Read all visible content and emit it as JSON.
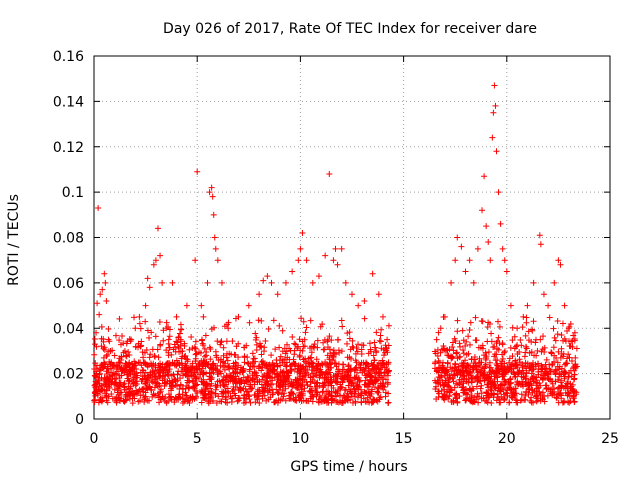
{
  "chart_data": {
    "type": "scatter",
    "title": "Day 026 of 2017, Rate Of TEC Index for receiver dare",
    "xlabel": "GPS time / hours",
    "ylabel": "ROTI / TECUs",
    "xlim": [
      0,
      25
    ],
    "ylim": [
      0,
      0.16
    ],
    "xticks": [
      0,
      5,
      10,
      15,
      20,
      25
    ],
    "yticks": [
      0,
      0.02,
      0.04,
      0.06,
      0.08,
      0.1,
      0.12,
      0.14,
      0.16
    ],
    "xtick_labels": [
      "0",
      "5",
      "10",
      "15",
      "20",
      "25"
    ],
    "ytick_labels": [
      "0",
      "0.02",
      "0.04",
      "0.06",
      "0.08",
      "0.1",
      "0.12",
      "0.14",
      "0.16"
    ],
    "grid": true,
    "marker": "+",
    "color": "#ff0000",
    "data_coverage_hours": [
      [
        0.0,
        14.3
      ],
      [
        16.5,
        23.4
      ]
    ],
    "series": [
      {
        "name": "ROTI",
        "points": [
          [
            0.05,
            0.033
          ],
          [
            0.1,
            0.038
          ],
          [
            0.15,
            0.051
          ],
          [
            0.2,
            0.093
          ],
          [
            0.25,
            0.046
          ],
          [
            0.3,
            0.055
          ],
          [
            0.4,
            0.057
          ],
          [
            0.5,
            0.064
          ],
          [
            0.55,
            0.06
          ],
          [
            0.6,
            0.052
          ],
          [
            0.7,
            0.035
          ],
          [
            0.8,
            0.03
          ],
          [
            1.0,
            0.028
          ],
          [
            1.2,
            0.025
          ],
          [
            1.5,
            0.03
          ],
          [
            1.8,
            0.035
          ],
          [
            2.0,
            0.04
          ],
          [
            2.2,
            0.045
          ],
          [
            2.5,
            0.05
          ],
          [
            2.6,
            0.062
          ],
          [
            2.7,
            0.058
          ],
          [
            2.9,
            0.068
          ],
          [
            3.0,
            0.07
          ],
          [
            3.1,
            0.084
          ],
          [
            3.2,
            0.072
          ],
          [
            3.3,
            0.06
          ],
          [
            3.5,
            0.04
          ],
          [
            3.8,
            0.06
          ],
          [
            4.0,
            0.045
          ],
          [
            4.2,
            0.035
          ],
          [
            4.5,
            0.05
          ],
          [
            4.9,
            0.07
          ],
          [
            5.0,
            0.109
          ],
          [
            5.2,
            0.05
          ],
          [
            5.3,
            0.045
          ],
          [
            5.5,
            0.06
          ],
          [
            5.6,
            0.1
          ],
          [
            5.7,
            0.102
          ],
          [
            5.75,
            0.098
          ],
          [
            5.8,
            0.09
          ],
          [
            5.85,
            0.08
          ],
          [
            5.9,
            0.075
          ],
          [
            6.0,
            0.07
          ],
          [
            6.2,
            0.06
          ],
          [
            6.5,
            0.04
          ],
          [
            7.0,
            0.045
          ],
          [
            7.5,
            0.05
          ],
          [
            8.0,
            0.055
          ],
          [
            8.2,
            0.061
          ],
          [
            8.4,
            0.063
          ],
          [
            8.6,
            0.06
          ],
          [
            8.9,
            0.055
          ],
          [
            9.3,
            0.06
          ],
          [
            9.6,
            0.065
          ],
          [
            9.9,
            0.07
          ],
          [
            10.0,
            0.075
          ],
          [
            10.1,
            0.082
          ],
          [
            10.3,
            0.07
          ],
          [
            10.6,
            0.06
          ],
          [
            10.9,
            0.063
          ],
          [
            11.2,
            0.072
          ],
          [
            11.4,
            0.108
          ],
          [
            11.6,
            0.07
          ],
          [
            11.7,
            0.075
          ],
          [
            11.8,
            0.068
          ],
          [
            12.0,
            0.075
          ],
          [
            12.2,
            0.06
          ],
          [
            12.5,
            0.055
          ],
          [
            12.8,
            0.05
          ],
          [
            13.1,
            0.052
          ],
          [
            13.5,
            0.064
          ],
          [
            13.8,
            0.055
          ],
          [
            14.0,
            0.045
          ],
          [
            14.2,
            0.035
          ],
          [
            16.6,
            0.035
          ],
          [
            16.8,
            0.04
          ],
          [
            17.0,
            0.045
          ],
          [
            17.3,
            0.06
          ],
          [
            17.5,
            0.07
          ],
          [
            17.6,
            0.08
          ],
          [
            17.8,
            0.076
          ],
          [
            18.0,
            0.065
          ],
          [
            18.2,
            0.07
          ],
          [
            18.4,
            0.06
          ],
          [
            18.6,
            0.075
          ],
          [
            18.8,
            0.092
          ],
          [
            18.9,
            0.107
          ],
          [
            19.0,
            0.085
          ],
          [
            19.1,
            0.078
          ],
          [
            19.2,
            0.07
          ],
          [
            19.3,
            0.124
          ],
          [
            19.35,
            0.135
          ],
          [
            19.4,
            0.147
          ],
          [
            19.45,
            0.138
          ],
          [
            19.5,
            0.118
          ],
          [
            19.6,
            0.1
          ],
          [
            19.7,
            0.086
          ],
          [
            19.8,
            0.075
          ],
          [
            19.9,
            0.07
          ],
          [
            20.0,
            0.065
          ],
          [
            20.2,
            0.05
          ],
          [
            20.5,
            0.04
          ],
          [
            20.8,
            0.045
          ],
          [
            21.0,
            0.05
          ],
          [
            21.3,
            0.06
          ],
          [
            21.6,
            0.081
          ],
          [
            21.65,
            0.077
          ],
          [
            21.8,
            0.055
          ],
          [
            22.0,
            0.05
          ],
          [
            22.3,
            0.06
          ],
          [
            22.5,
            0.07
          ],
          [
            22.6,
            0.068
          ],
          [
            22.8,
            0.05
          ],
          [
            23.0,
            0.04
          ],
          [
            23.3,
            0.038
          ]
        ]
      }
    ]
  }
}
